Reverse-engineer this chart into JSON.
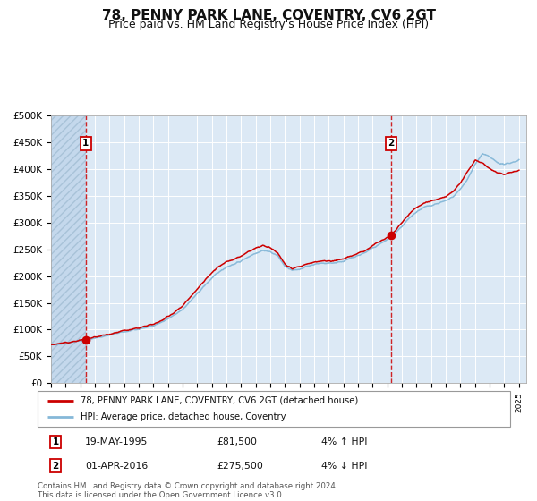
{
  "title": "78, PENNY PARK LANE, COVENTRY, CV6 2GT",
  "subtitle": "Price paid vs. HM Land Registry's House Price Index (HPI)",
  "title_fontsize": 11,
  "subtitle_fontsize": 9,
  "ylim": [
    0,
    500000
  ],
  "yticks": [
    0,
    50000,
    100000,
    150000,
    200000,
    250000,
    300000,
    350000,
    400000,
    450000,
    500000
  ],
  "ytick_labels": [
    "£0",
    "£50K",
    "£100K",
    "£150K",
    "£200K",
    "£250K",
    "£300K",
    "£350K",
    "£400K",
    "£450K",
    "£500K"
  ],
  "xlim_start": 1993.0,
  "xlim_end": 2025.5,
  "plot_bg": "#dce9f5",
  "grid_color": "#ffffff",
  "red_line_color": "#cc0000",
  "blue_line_color": "#85b8d8",
  "marker_color": "#cc0000",
  "dashed_line_color": "#cc0000",
  "sale1_x": 1995.38,
  "sale1_y": 81500,
  "sale2_x": 2016.25,
  "sale2_y": 275500,
  "legend_line1": "78, PENNY PARK LANE, COVENTRY, CV6 2GT (detached house)",
  "legend_line2": "HPI: Average price, detached house, Coventry",
  "annot1_date": "19-MAY-1995",
  "annot1_price": "£81,500",
  "annot1_hpi": "4% ↑ HPI",
  "annot2_date": "01-APR-2016",
  "annot2_price": "£275,500",
  "annot2_hpi": "4% ↓ HPI",
  "footer": "Contains HM Land Registry data © Crown copyright and database right 2024.\nThis data is licensed under the Open Government Licence v3.0.",
  "hatch_end_year": 1995.38,
  "key_years_hpi": [
    1993.0,
    1993.5,
    1994.0,
    1994.5,
    1995.0,
    1995.5,
    1996.0,
    1996.5,
    1997.0,
    1997.5,
    1998.0,
    1998.5,
    1999.0,
    1999.5,
    2000.0,
    2000.5,
    2001.0,
    2001.5,
    2002.0,
    2002.5,
    2003.0,
    2003.5,
    2004.0,
    2004.5,
    2005.0,
    2005.5,
    2006.0,
    2006.5,
    2007.0,
    2007.5,
    2008.0,
    2008.5,
    2009.0,
    2009.5,
    2010.0,
    2010.5,
    2011.0,
    2011.5,
    2012.0,
    2012.5,
    2013.0,
    2013.5,
    2014.0,
    2014.5,
    2015.0,
    2015.5,
    2016.0,
    2016.5,
    2017.0,
    2017.5,
    2018.0,
    2018.5,
    2019.0,
    2019.5,
    2020.0,
    2020.5,
    2021.0,
    2021.5,
    2022.0,
    2022.5,
    2023.0,
    2023.5,
    2024.0,
    2024.5,
    2025.0
  ],
  "key_vals_hpi": [
    72000,
    73000,
    75000,
    77000,
    79000,
    81000,
    84000,
    87000,
    90000,
    93000,
    96000,
    98000,
    101000,
    104000,
    108000,
    113000,
    120000,
    128000,
    138000,
    152000,
    167000,
    182000,
    196000,
    208000,
    217000,
    222000,
    228000,
    236000,
    243000,
    248000,
    245000,
    238000,
    218000,
    210000,
    213000,
    218000,
    222000,
    224000,
    224000,
    225000,
    228000,
    233000,
    238000,
    244000,
    252000,
    260000,
    268000,
    278000,
    292000,
    308000,
    320000,
    328000,
    332000,
    336000,
    340000,
    348000,
    362000,
    382000,
    408000,
    428000,
    422000,
    412000,
    408000,
    412000,
    416000
  ],
  "key_years_red": [
    1993.0,
    1993.5,
    1994.0,
    1994.5,
    1995.0,
    1995.38,
    1995.5,
    1996.0,
    1996.5,
    1997.0,
    1997.5,
    1998.0,
    1998.5,
    1999.0,
    1999.5,
    2000.0,
    2000.5,
    2001.0,
    2001.5,
    2002.0,
    2002.5,
    2003.0,
    2003.5,
    2004.0,
    2004.5,
    2005.0,
    2005.5,
    2006.0,
    2006.5,
    2007.0,
    2007.5,
    2008.0,
    2008.5,
    2009.0,
    2009.5,
    2010.0,
    2010.5,
    2011.0,
    2011.5,
    2012.0,
    2012.5,
    2013.0,
    2013.5,
    2014.0,
    2014.5,
    2015.0,
    2015.5,
    2016.0,
    2016.25,
    2016.5,
    2017.0,
    2017.5,
    2018.0,
    2018.5,
    2019.0,
    2019.5,
    2020.0,
    2020.5,
    2021.0,
    2021.5,
    2022.0,
    2022.5,
    2023.0,
    2023.5,
    2024.0,
    2024.5,
    2025.0
  ],
  "key_vals_red": [
    72000,
    73500,
    75500,
    77500,
    80000,
    81500,
    82500,
    86000,
    89000,
    92000,
    95000,
    98000,
    100000,
    103000,
    106500,
    110000,
    116000,
    124000,
    133000,
    145000,
    160000,
    176000,
    192000,
    206000,
    218000,
    226000,
    231000,
    237000,
    245000,
    252000,
    257000,
    252000,
    244000,
    222000,
    214000,
    218000,
    222000,
    226000,
    228000,
    228000,
    229000,
    232000,
    237000,
    242000,
    248000,
    257000,
    265000,
    272000,
    275500,
    284000,
    300000,
    316000,
    328000,
    336000,
    340000,
    344000,
    348000,
    358000,
    374000,
    396000,
    416000,
    410000,
    400000,
    393000,
    390000,
    394000,
    398000
  ]
}
